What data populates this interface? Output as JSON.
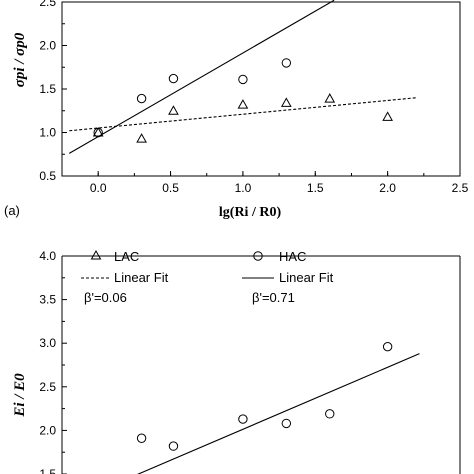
{
  "chart_data": [
    {
      "type": "scatter",
      "title": "",
      "panel_label": "(a)",
      "ylabel": "σpi / σp0",
      "xlabel": "lg(Ri / R0)",
      "xlim": [
        -0.25,
        2.5
      ],
      "ylim": [
        0.5,
        2.5
      ],
      "xticks": [
        "0.0",
        "0.5",
        "1.0",
        "1.5",
        "2.0",
        "2.5"
      ],
      "yticks": [
        "0.5",
        "1.0",
        "1.5",
        "2.0",
        "2.5"
      ],
      "grid": false,
      "series": [
        {
          "marker": "triangle",
          "x": [
            0.0,
            0.3,
            0.52,
            1.0,
            1.3,
            1.6,
            2.0
          ],
          "y": [
            1.0,
            0.93,
            1.25,
            1.32,
            1.34,
            1.39,
            1.18
          ]
        },
        {
          "marker": "circle",
          "x": [
            0.0,
            0.3,
            0.52,
            1.0,
            1.3
          ],
          "y": [
            1.0,
            1.39,
            1.62,
            1.61,
            1.8
          ]
        }
      ],
      "fits": [
        {
          "style": "dashed",
          "x": [
            -0.2,
            2.2
          ],
          "y": [
            1.02,
            1.4
          ]
        },
        {
          "style": "solid",
          "x": [
            -0.2,
            1.63
          ],
          "y": [
            0.76,
            2.52
          ]
        }
      ]
    },
    {
      "type": "scatter",
      "title": "",
      "ylabel": "Ei / E0",
      "xlim": [
        -0.25,
        2.5
      ],
      "ylim": [
        1.5,
        4.0
      ],
      "yticks": [
        "1.5",
        "2.0",
        "2.5",
        "3.0",
        "3.5",
        "4.0"
      ],
      "grid": false,
      "legend": {
        "lac_label": "LAC",
        "lac_fit_label": "Linear Fit",
        "lac_beta": "β'=0.06",
        "hac_label": "HAC",
        "hac_fit_label": "Linear Fit",
        "hac_beta": "β'=0.71"
      },
      "series": [
        {
          "name": "HAC",
          "marker": "circle",
          "x": [
            0.3,
            0.52,
            1.0,
            1.3,
            1.6,
            2.0
          ],
          "y": [
            1.91,
            1.82,
            2.13,
            2.08,
            2.19,
            2.96
          ]
        }
      ],
      "fits": [
        {
          "style": "solid",
          "x": [
            0.25,
            2.22
          ],
          "y": [
            1.48,
            2.88
          ]
        }
      ]
    }
  ]
}
